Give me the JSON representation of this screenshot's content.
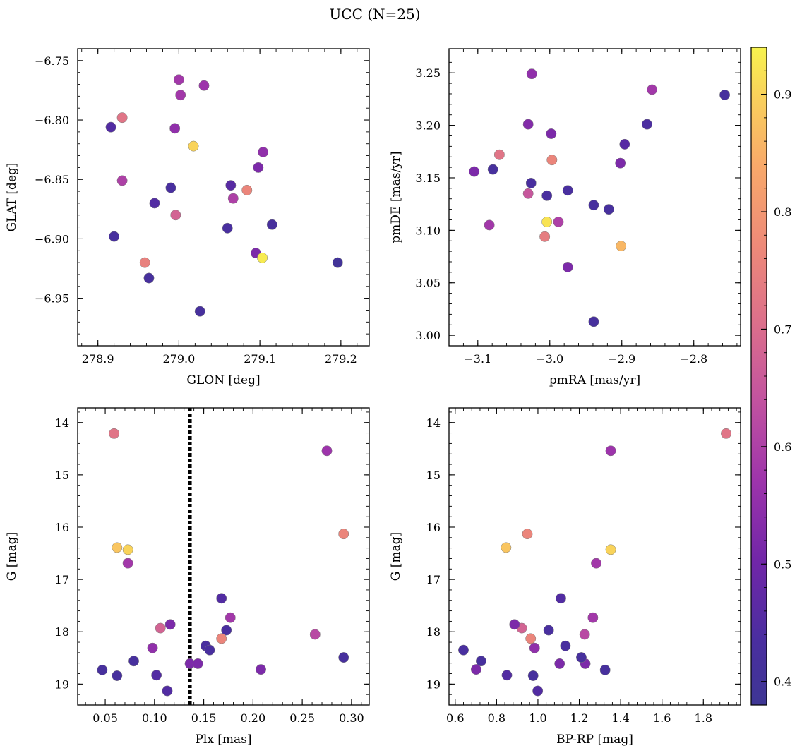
{
  "title": "UCC (N=25)",
  "colorbar": {
    "ticks": [
      "0.4",
      "0.5",
      "0.6",
      "0.7",
      "0.8",
      "0.9"
    ],
    "range": [
      0.38,
      0.94
    ]
  },
  "chart_data": [
    {
      "type": "scatter",
      "name": "glon-glat",
      "xlabel": "GLON [deg]",
      "ylabel": "GLAT [deg]",
      "xlim": [
        278.875,
        279.235
      ],
      "ylim": [
        -6.99,
        -6.74
      ],
      "xticks": [
        278.9,
        279.0,
        279.1,
        279.2
      ],
      "xtick_labels": [
        "278.9",
        "279.0",
        "279.1",
        "279.2"
      ],
      "yticks": [
        -6.75,
        -6.8,
        -6.85,
        -6.9,
        -6.95
      ],
      "ytick_labels": [
        "−6.75",
        "−6.80",
        "−6.85",
        "−6.90",
        "−6.95"
      ],
      "points": [
        {
          "x": 278.916,
          "y": -6.806,
          "c": 0.45
        },
        {
          "x": 278.93,
          "y": -6.798,
          "c": 0.72
        },
        {
          "x": 279.0,
          "y": -6.766,
          "c": 0.58
        },
        {
          "x": 279.002,
          "y": -6.779,
          "c": 0.58
        },
        {
          "x": 279.031,
          "y": -6.771,
          "c": 0.57
        },
        {
          "x": 278.995,
          "y": -6.807,
          "c": 0.55
        },
        {
          "x": 279.018,
          "y": -6.822,
          "c": 0.9
        },
        {
          "x": 278.93,
          "y": -6.851,
          "c": 0.6
        },
        {
          "x": 278.99,
          "y": -6.857,
          "c": 0.43
        },
        {
          "x": 278.97,
          "y": -6.87,
          "c": 0.45
        },
        {
          "x": 278.996,
          "y": -6.88,
          "c": 0.68
        },
        {
          "x": 278.92,
          "y": -6.898,
          "c": 0.42
        },
        {
          "x": 278.958,
          "y": -6.92,
          "c": 0.75
        },
        {
          "x": 278.963,
          "y": -6.933,
          "c": 0.42
        },
        {
          "x": 279.026,
          "y": -6.961,
          "c": 0.42
        },
        {
          "x": 279.064,
          "y": -6.855,
          "c": 0.46
        },
        {
          "x": 279.067,
          "y": -6.866,
          "c": 0.6
        },
        {
          "x": 279.084,
          "y": -6.859,
          "c": 0.76
        },
        {
          "x": 279.104,
          "y": -6.827,
          "c": 0.55
        },
        {
          "x": 279.098,
          "y": -6.84,
          "c": 0.52
        },
        {
          "x": 279.06,
          "y": -6.891,
          "c": 0.43
        },
        {
          "x": 279.115,
          "y": -6.888,
          "c": 0.42
        },
        {
          "x": 279.095,
          "y": -6.912,
          "c": 0.52
        },
        {
          "x": 279.103,
          "y": -6.916,
          "c": 0.93
        },
        {
          "x": 279.196,
          "y": -6.92,
          "c": 0.4
        }
      ]
    },
    {
      "type": "scatter",
      "name": "pmra-pmde",
      "xlabel": "pmRA [mas/yr]",
      "ylabel": "pmDE [mas/yr]",
      "xlim": [
        -3.14,
        -2.735
      ],
      "ylim": [
        2.99,
        3.273
      ],
      "xticks": [
        -3.1,
        -3.0,
        -2.9,
        -2.8
      ],
      "xtick_labels": [
        "−3.1",
        "−3.0",
        "−2.9",
        "−2.8"
      ],
      "yticks": [
        3.0,
        3.05,
        3.1,
        3.15,
        3.2,
        3.25
      ],
      "ytick_labels": [
        "3.00",
        "3.05",
        "3.10",
        "3.15",
        "3.20",
        "3.25"
      ],
      "points": [
        {
          "x": -3.025,
          "y": 3.249,
          "c": 0.55
        },
        {
          "x": -2.858,
          "y": 3.234,
          "c": 0.58
        },
        {
          "x": -2.757,
          "y": 3.229,
          "c": 0.42
        },
        {
          "x": -3.03,
          "y": 3.201,
          "c": 0.53
        },
        {
          "x": -2.865,
          "y": 3.201,
          "c": 0.44
        },
        {
          "x": -2.998,
          "y": 3.192,
          "c": 0.52
        },
        {
          "x": -2.896,
          "y": 3.182,
          "c": 0.46
        },
        {
          "x": -3.07,
          "y": 3.172,
          "c": 0.72
        },
        {
          "x": -2.997,
          "y": 3.167,
          "c": 0.76
        },
        {
          "x": -2.902,
          "y": 3.164,
          "c": 0.52
        },
        {
          "x": -3.105,
          "y": 3.156,
          "c": 0.52
        },
        {
          "x": -3.079,
          "y": 3.158,
          "c": 0.42
        },
        {
          "x": -3.026,
          "y": 3.145,
          "c": 0.43
        },
        {
          "x": -3.03,
          "y": 3.135,
          "c": 0.65
        },
        {
          "x": -3.004,
          "y": 3.133,
          "c": 0.43
        },
        {
          "x": -2.975,
          "y": 3.138,
          "c": 0.43
        },
        {
          "x": -2.939,
          "y": 3.124,
          "c": 0.42
        },
        {
          "x": -2.918,
          "y": 3.12,
          "c": 0.42
        },
        {
          "x": -3.084,
          "y": 3.105,
          "c": 0.58
        },
        {
          "x": -3.004,
          "y": 3.108,
          "c": 0.92
        },
        {
          "x": -2.988,
          "y": 3.108,
          "c": 0.6
        },
        {
          "x": -3.007,
          "y": 3.094,
          "c": 0.74
        },
        {
          "x": -2.901,
          "y": 3.085,
          "c": 0.86
        },
        {
          "x": -2.975,
          "y": 3.065,
          "c": 0.52
        },
        {
          "x": -2.939,
          "y": 3.013,
          "c": 0.42
        }
      ]
    },
    {
      "type": "scatter",
      "name": "plx-g",
      "xlabel": "Plx [mas]",
      "ylabel": "G [mag]",
      "xlim": [
        0.022,
        0.318
      ],
      "ylim": [
        19.4,
        13.72
      ],
      "y_inverted": true,
      "xticks": [
        0.05,
        0.1,
        0.15,
        0.2,
        0.25,
        0.3
      ],
      "xtick_labels": [
        "0.05",
        "0.10",
        "0.15",
        "0.20",
        "0.25",
        "0.30"
      ],
      "yticks": [
        14,
        15,
        16,
        17,
        18,
        19
      ],
      "ytick_labels": [
        "14",
        "15",
        "16",
        "17",
        "18",
        "19"
      ],
      "vline": {
        "x": 0.136,
        "style": "dotted"
      },
      "points": [
        {
          "x": 0.059,
          "y": 14.21,
          "c": 0.72
        },
        {
          "x": 0.275,
          "y": 14.54,
          "c": 0.57
        },
        {
          "x": 0.062,
          "y": 16.39,
          "c": 0.88
        },
        {
          "x": 0.073,
          "y": 16.43,
          "c": 0.9
        },
        {
          "x": 0.292,
          "y": 16.13,
          "c": 0.76
        },
        {
          "x": 0.073,
          "y": 16.69,
          "c": 0.58
        },
        {
          "x": 0.168,
          "y": 17.36,
          "c": 0.45
        },
        {
          "x": 0.177,
          "y": 17.73,
          "c": 0.58
        },
        {
          "x": 0.106,
          "y": 17.93,
          "c": 0.68
        },
        {
          "x": 0.116,
          "y": 17.86,
          "c": 0.52
        },
        {
          "x": 0.173,
          "y": 17.97,
          "c": 0.43
        },
        {
          "x": 0.168,
          "y": 18.13,
          "c": 0.76
        },
        {
          "x": 0.263,
          "y": 18.05,
          "c": 0.62
        },
        {
          "x": 0.098,
          "y": 18.31,
          "c": 0.55
        },
        {
          "x": 0.152,
          "y": 18.27,
          "c": 0.43
        },
        {
          "x": 0.156,
          "y": 18.35,
          "c": 0.43
        },
        {
          "x": 0.079,
          "y": 18.56,
          "c": 0.42
        },
        {
          "x": 0.136,
          "y": 18.61,
          "c": 0.52
        },
        {
          "x": 0.144,
          "y": 18.61,
          "c": 0.52
        },
        {
          "x": 0.292,
          "y": 18.49,
          "c": 0.42
        },
        {
          "x": 0.208,
          "y": 18.72,
          "c": 0.52
        },
        {
          "x": 0.047,
          "y": 18.73,
          "c": 0.42
        },
        {
          "x": 0.062,
          "y": 18.84,
          "c": 0.42
        },
        {
          "x": 0.102,
          "y": 18.83,
          "c": 0.45
        },
        {
          "x": 0.113,
          "y": 19.13,
          "c": 0.45
        }
      ]
    },
    {
      "type": "scatter",
      "name": "bprp-g",
      "xlabel": "BP-RP [mag]",
      "ylabel": "G [mag]",
      "xlim": [
        0.57,
        1.98
      ],
      "ylim": [
        19.4,
        13.72
      ],
      "y_inverted": true,
      "xticks": [
        0.6,
        0.8,
        1.0,
        1.2,
        1.4,
        1.6,
        1.8
      ],
      "xtick_labels": [
        "0.6",
        "0.8",
        "1.0",
        "1.2",
        "1.4",
        "1.6",
        "1.8"
      ],
      "yticks": [
        14,
        15,
        16,
        17,
        18,
        19
      ],
      "ytick_labels": [
        "14",
        "15",
        "16",
        "17",
        "18",
        "19"
      ],
      "points": [
        {
          "x": 1.91,
          "y": 14.21,
          "c": 0.72
        },
        {
          "x": 1.352,
          "y": 14.54,
          "c": 0.57
        },
        {
          "x": 0.846,
          "y": 16.39,
          "c": 0.88
        },
        {
          "x": 1.352,
          "y": 16.43,
          "c": 0.9
        },
        {
          "x": 0.949,
          "y": 16.13,
          "c": 0.76
        },
        {
          "x": 1.282,
          "y": 16.69,
          "c": 0.58
        },
        {
          "x": 1.111,
          "y": 17.36,
          "c": 0.45
        },
        {
          "x": 1.266,
          "y": 17.73,
          "c": 0.58
        },
        {
          "x": 0.922,
          "y": 17.93,
          "c": 0.68
        },
        {
          "x": 0.887,
          "y": 17.86,
          "c": 0.52
        },
        {
          "x": 1.052,
          "y": 17.97,
          "c": 0.43
        },
        {
          "x": 0.965,
          "y": 18.13,
          "c": 0.76
        },
        {
          "x": 1.226,
          "y": 18.05,
          "c": 0.62
        },
        {
          "x": 0.984,
          "y": 18.31,
          "c": 0.55
        },
        {
          "x": 1.133,
          "y": 18.27,
          "c": 0.43
        },
        {
          "x": 0.64,
          "y": 18.35,
          "c": 0.43
        },
        {
          "x": 0.725,
          "y": 18.56,
          "c": 0.42
        },
        {
          "x": 1.105,
          "y": 18.61,
          "c": 0.52
        },
        {
          "x": 1.229,
          "y": 18.61,
          "c": 0.52
        },
        {
          "x": 1.21,
          "y": 18.49,
          "c": 0.42
        },
        {
          "x": 0.701,
          "y": 18.72,
          "c": 0.52
        },
        {
          "x": 1.325,
          "y": 18.73,
          "c": 0.42
        },
        {
          "x": 0.977,
          "y": 18.84,
          "c": 0.42
        },
        {
          "x": 0.85,
          "y": 18.83,
          "c": 0.45
        },
        {
          "x": 0.999,
          "y": 19.13,
          "c": 0.45
        }
      ]
    }
  ]
}
